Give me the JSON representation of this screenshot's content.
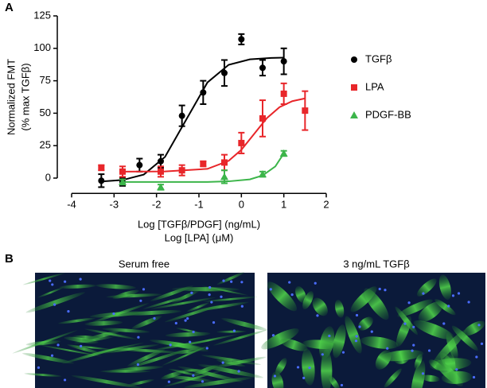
{
  "panel_labels": [
    "A",
    "B"
  ],
  "chart_data": {
    "type": "scatter",
    "xlabel": [
      "Log  [TGFβ/PDGF] (ng/mL)",
      "Log  [LPA] (μM)"
    ],
    "ylabel": [
      "Normalized FMT",
      "(% max TGFβ)"
    ],
    "xlim": [
      -4,
      2
    ],
    "xticks": [
      -4,
      -3,
      -2,
      -1,
      0,
      1,
      2
    ],
    "ylim": [
      -10,
      125
    ],
    "yticks": [
      0,
      25,
      50,
      75,
      100,
      125
    ],
    "legend": "right",
    "series": [
      {
        "name": "TGFβ",
        "color": "#000000",
        "marker": "circle",
        "x": [
          -3.3,
          -2.8,
          -2.4,
          -1.9,
          -1.4,
          -0.9,
          -0.4,
          0,
          0.5,
          1
        ],
        "values": [
          -2,
          -3,
          10,
          13,
          48,
          66,
          81,
          107,
          85,
          90
        ],
        "errors": [
          5,
          3,
          5,
          5,
          8,
          9,
          10,
          4,
          6,
          10
        ],
        "fit_x": [
          -3.3,
          -2.8,
          -2.3,
          -1.8,
          -1.3,
          -0.8,
          -0.3,
          0.2,
          0.7,
          1
        ],
        "fit_values": [
          -2.6,
          -1.5,
          2.7,
          16.3,
          45,
          73.7,
          87.3,
          91.5,
          92.6,
          92.8
        ]
      },
      {
        "name": "LPA",
        "color": "#e8262a",
        "marker": "square",
        "x": [
          -3.3,
          -2.8,
          -1.9,
          -1.4,
          -0.9,
          -0.4,
          0,
          0.5,
          1,
          1.5
        ],
        "values": [
          8,
          5,
          5,
          6,
          11,
          12,
          27,
          46,
          65,
          52
        ],
        "errors": [
          2,
          4,
          4,
          4,
          2,
          6,
          8,
          14,
          8,
          15
        ],
        "fit_x": [
          -2.8,
          -1.8,
          -0.8,
          -0.3,
          0,
          0.3,
          0.6,
          0.9,
          1.2,
          1.5
        ],
        "fit_values": [
          5,
          5.1,
          7.1,
          13.3,
          21.8,
          34,
          46.2,
          54.7,
          59.3,
          61.4
        ]
      },
      {
        "name": "PDGF-BB",
        "color": "#3cb54a",
        "marker": "triangle",
        "x": [
          -2.8,
          -1.9,
          -0.4,
          0.5,
          1
        ],
        "values": [
          -3,
          -7,
          1,
          3,
          19
        ],
        "errors": [
          2,
          2,
          5,
          2,
          2
        ],
        "fit_x": [
          -2.8,
          -1.8,
          -0.8,
          -0.3,
          0.2,
          0.5,
          0.8,
          1
        ],
        "fit_values": [
          -3,
          -3,
          -3,
          -2.5,
          -1,
          2,
          9,
          19
        ]
      }
    ]
  },
  "images": [
    {
      "title": "Serum free"
    },
    {
      "title": "3 ng/mL TGFβ"
    }
  ]
}
